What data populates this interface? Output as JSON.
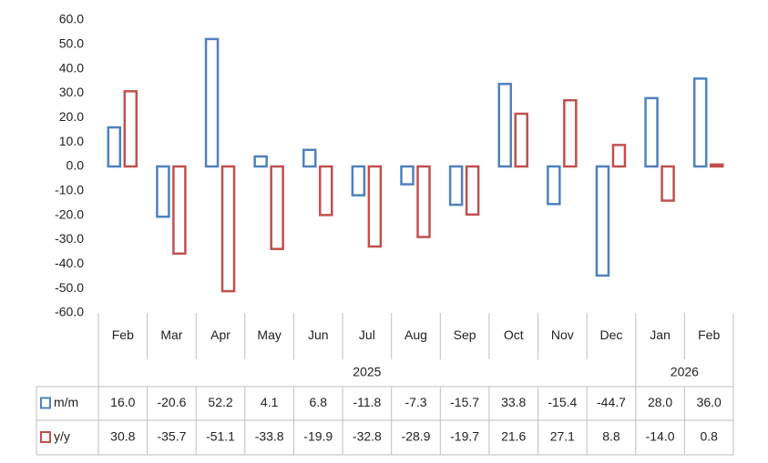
{
  "chart_data": {
    "type": "bar",
    "category_groups": [
      {
        "label": "2025",
        "categories": [
          "Feb",
          "Mar",
          "Apr",
          "May",
          "Jun",
          "Jul",
          "Aug",
          "Sep",
          "Oct",
          "Nov",
          "Dec"
        ]
      },
      {
        "label": "2026",
        "categories": [
          "Jan",
          "Feb"
        ]
      }
    ],
    "series": [
      {
        "name": "m/m",
        "color": "#4f81bd",
        "values": [
          16.0,
          -20.6,
          52.2,
          4.1,
          6.8,
          -11.8,
          -7.3,
          -15.7,
          33.8,
          -15.4,
          -44.7,
          28.0,
          36.0
        ],
        "value_labels": [
          "16.0",
          "-20.6",
          "52.2",
          "4.1",
          "6.8",
          "-11.8",
          "-7.3",
          "-15.7",
          "33.8",
          "-15.4",
          "-44.7",
          "28.0",
          "36.0"
        ]
      },
      {
        "name": "y/y",
        "color": "#c0504d",
        "values": [
          30.8,
          -35.7,
          -51.1,
          -33.8,
          -19.9,
          -32.8,
          -28.9,
          -19.7,
          21.6,
          27.1,
          8.8,
          -14.0,
          0.8
        ],
        "value_labels": [
          "30.8",
          "-35.7",
          "-51.1",
          "-33.8",
          "-19.9",
          "-32.8",
          "-28.9",
          "-19.7",
          "21.6",
          "27.1",
          "8.8",
          "-14.0",
          "0.8"
        ]
      }
    ],
    "ylim": [
      -60,
      60
    ],
    "yticks": [
      {
        "value": 60,
        "label": "60.0"
      },
      {
        "value": 50,
        "label": "50.0"
      },
      {
        "value": 40,
        "label": "40.0"
      },
      {
        "value": 30,
        "label": "30.0"
      },
      {
        "value": 20,
        "label": "20.0"
      },
      {
        "value": 10,
        "label": "10.0"
      },
      {
        "value": 0,
        "label": "0.0"
      },
      {
        "value": -10,
        "label": "-10.0"
      },
      {
        "value": -20,
        "label": "-20.0"
      },
      {
        "value": -30,
        "label": "-30.0"
      },
      {
        "value": -40,
        "label": "-40.0"
      },
      {
        "value": -50,
        "label": "-50.0"
      },
      {
        "value": -60,
        "label": "-60.0"
      }
    ],
    "grid": false
  }
}
